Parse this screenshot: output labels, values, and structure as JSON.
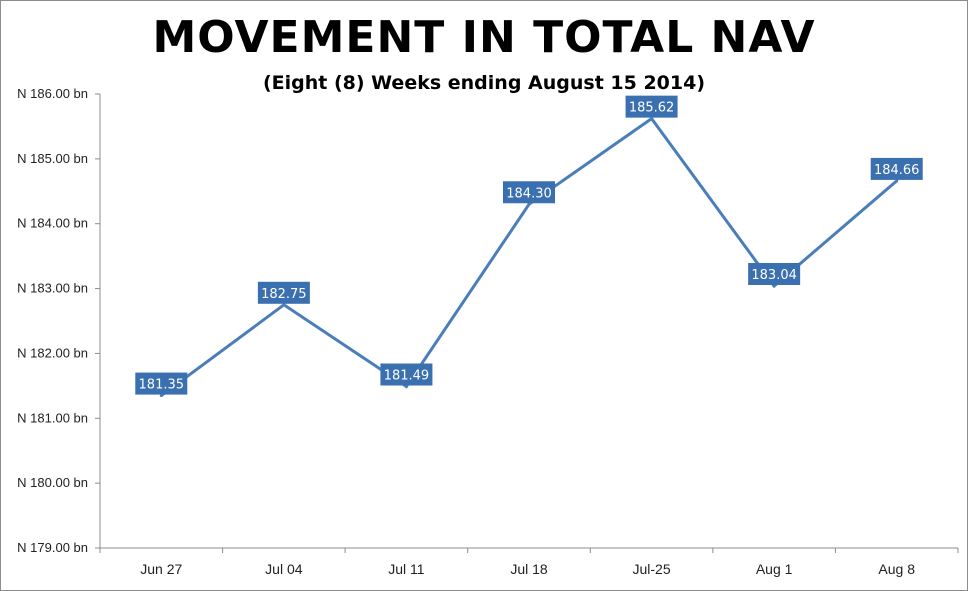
{
  "chart_data": {
    "type": "line",
    "title": "MOVEMENT IN TOTAL NAV",
    "subtitle": "(Eight (8) Weeks  ending August 15 2014)",
    "xlabel": "",
    "ylabel": "",
    "categories": [
      "Jun 27",
      "Jul 04",
      "Jul 11",
      "Jul 18",
      "Jul-25",
      "Aug 1",
      "Aug 8"
    ],
    "series": [
      {
        "values": [
          181.35,
          182.75,
          181.49,
          184.3,
          185.62,
          183.04,
          184.66
        ],
        "labels": [
          "181.35",
          "182.75",
          "181.49",
          "184.30",
          "185.62",
          "183.04",
          "184.66"
        ]
      }
    ],
    "ylim": [
      179,
      186
    ],
    "yticks": [
      179,
      180,
      181,
      182,
      183,
      184,
      185,
      186
    ],
    "ytick_labels": [
      "N 179.00 bn",
      "N 180.00 bn",
      "N 181.00 bn",
      "N 182.00 bn",
      "N 183.00 bn",
      "N 184.00 bn",
      "N 185.00 bn",
      "N 186.00 bn"
    ],
    "grid": false,
    "legend": "none",
    "colors": {
      "line": "#4a7ebb",
      "label_bg": "#3a6fb0",
      "axis": "#8c8c8c"
    }
  }
}
